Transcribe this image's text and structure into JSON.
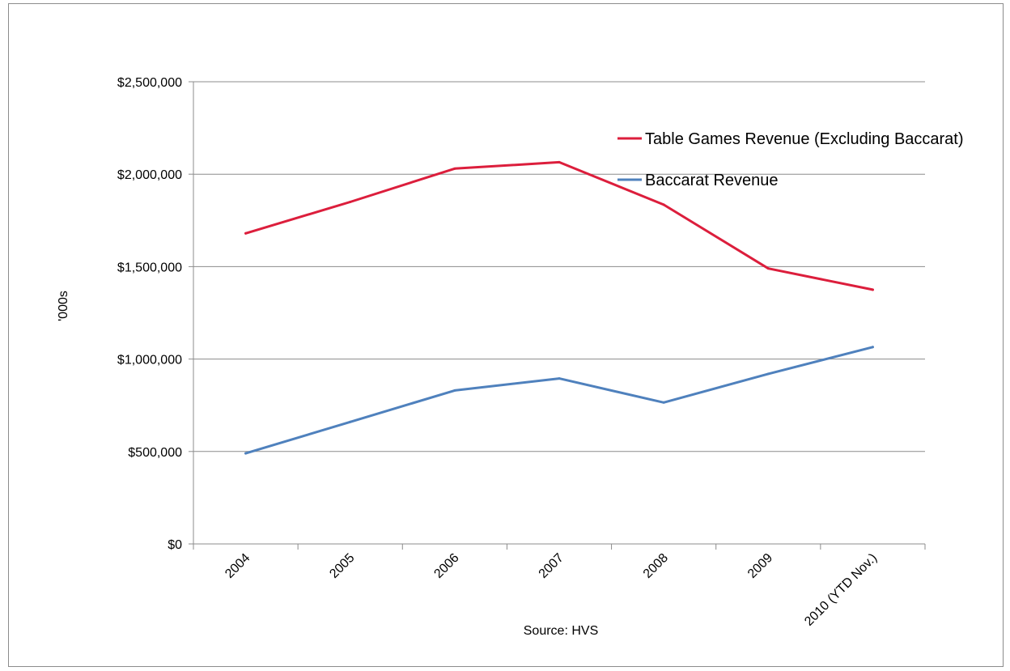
{
  "chart_data": {
    "type": "line",
    "categories": [
      "2004",
      "2005",
      "2006",
      "2007",
      "2008",
      "2009",
      "2010 (YTD Nov.)"
    ],
    "series": [
      {
        "name": "Table Games Revenue (Excluding Baccarat)",
        "color": "#dc1e3c",
        "values": [
          1680000,
          1850000,
          2030000,
          2065000,
          1835000,
          1490000,
          1375000
        ]
      },
      {
        "name": "Baccarat Revenue",
        "color": "#4f81bd",
        "values": [
          490000,
          660000,
          830000,
          895000,
          765000,
          920000,
          1065000
        ]
      }
    ],
    "ylabel": "'000s",
    "xlabel": "Source: HVS",
    "ylim": [
      0,
      2500000
    ],
    "yticks": [
      0,
      500000,
      1000000,
      1500000,
      2000000,
      2500000
    ],
    "ytick_labels": [
      "$0",
      "$500,000",
      "$1,000,000",
      "$1,500,000",
      "$2,000,000",
      "$2,500,000"
    ],
    "grid": true,
    "legend_position": "top-right",
    "gridline_color": "#8c8c8c"
  }
}
